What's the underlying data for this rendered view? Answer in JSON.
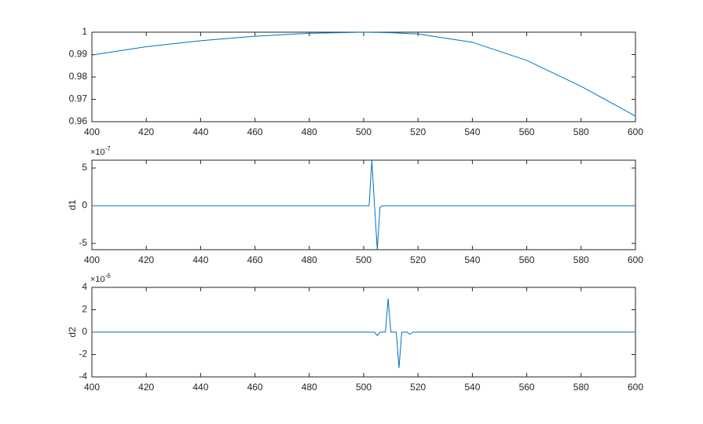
{
  "chart_data": [
    {
      "type": "line",
      "x": [
        400,
        420,
        440,
        460,
        480,
        500,
        510,
        520,
        540,
        560,
        580,
        600
      ],
      "values": [
        0.9898,
        0.9935,
        0.9962,
        0.9982,
        0.9995,
        1.0,
        0.9998,
        0.9992,
        0.9955,
        0.9874,
        0.9758,
        0.9625
      ],
      "color": "#0072bd",
      "xlim": [
        400,
        600
      ],
      "ylim": [
        0.96,
        1
      ],
      "xticks": [
        400,
        420,
        440,
        460,
        480,
        500,
        520,
        540,
        560,
        580,
        600
      ],
      "yticks": [
        0.96,
        0.97,
        0.98,
        0.99,
        1
      ]
    },
    {
      "type": "line",
      "ylabel": "d1",
      "y_exponent_base": "×10",
      "y_exponent": "-7",
      "x": [
        400,
        502,
        503,
        504,
        505,
        506,
        507,
        600
      ],
      "values": [
        0,
        0,
        6e-07,
        0,
        -5.8e-07,
        -2e-08,
        0,
        0
      ],
      "color": "#0072bd",
      "xlim": [
        400,
        600
      ],
      "ylim": [
        -5.83e-07,
        6.04e-07
      ],
      "xticks": [
        400,
        420,
        440,
        460,
        480,
        500,
        520,
        540,
        560,
        580,
        600
      ],
      "yticks": [
        {
          "value": -5e-07,
          "label": "-5"
        },
        0,
        {
          "value": 5e-07,
          "label": "5"
        }
      ]
    },
    {
      "type": "line",
      "ylabel": "d2",
      "y_exponent_base": "×10",
      "y_exponent": "-6",
      "x": [
        400,
        504,
        505,
        506,
        508,
        509,
        510,
        512,
        513,
        514,
        516,
        517,
        518,
        600
      ],
      "values": [
        0,
        0,
        -3e-07,
        0,
        0,
        3e-06,
        0,
        0,
        -3.2e-06,
        0,
        0,
        -2e-07,
        0,
        0
      ],
      "color": "#0072bd",
      "xlim": [
        400,
        600
      ],
      "ylim": [
        -4e-06,
        4e-06
      ],
      "xticks": [
        400,
        420,
        440,
        460,
        480,
        500,
        520,
        540,
        560,
        580,
        600
      ],
      "yticks": [
        {
          "value": -4e-06,
          "label": "-4"
        },
        {
          "value": -2e-06,
          "label": "-2"
        },
        0,
        {
          "value": 2e-06,
          "label": "2"
        },
        {
          "value": 4e-06,
          "label": "4"
        }
      ]
    }
  ]
}
